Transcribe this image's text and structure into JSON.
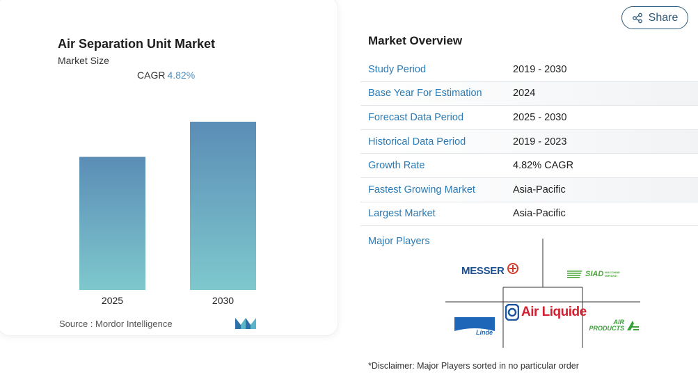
{
  "chart_data": {
    "type": "bar",
    "title": "Air Separation Unit Market",
    "subtitle": "Market Size",
    "cagr_label": "CAGR",
    "cagr_value": "4.82%",
    "categories": [
      "2025",
      "2030"
    ],
    "values": [
      1.0,
      1.264
    ],
    "colors": {
      "top": "#5b8db6",
      "bottom": "#7ec8cd"
    },
    "source": "Source : Mordor Intelligence"
  },
  "share": {
    "label": "Share"
  },
  "overview": {
    "title": "Market Overview",
    "rows": [
      {
        "key": "Study Period",
        "value": "2019 - 2030"
      },
      {
        "key": "Base Year For Estimation",
        "value": "2024"
      },
      {
        "key": "Forecast Data Period",
        "value": "2025 - 2030"
      },
      {
        "key": "Historical Data Period",
        "value": "2019 - 2023"
      },
      {
        "key": "Growth Rate",
        "value": "4.82% CAGR"
      },
      {
        "key": "Fastest Growing Market",
        "value": "Asia-Pacific"
      },
      {
        "key": "Largest Market",
        "value": "Asia-Pacific"
      }
    ]
  },
  "players": {
    "label": "Major Players",
    "logos": [
      "MESSER",
      "SIAD",
      "Air Liquide",
      "Linde",
      "AIR PRODUCTS"
    ],
    "siad_small": [
      "MACCHINE",
      "IMPIANTI"
    ]
  },
  "disclaimer": "*Disclaimer: Major Players sorted in no particular order"
}
